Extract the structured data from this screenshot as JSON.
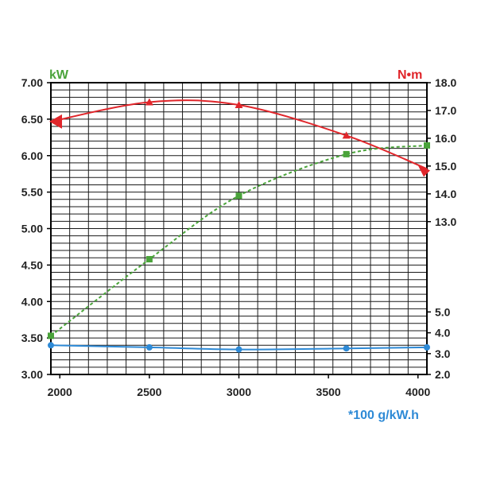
{
  "chart_data": {
    "type": "line",
    "title": "",
    "x": [
      1950,
      2500,
      3000,
      3600,
      4050
    ],
    "xlim": [
      1950,
      4050
    ],
    "x_ticks": [
      2000,
      2500,
      3000,
      3500,
      4000
    ],
    "x_tick_labels": [
      "2000",
      "2500",
      "3000",
      "3500",
      "4000"
    ],
    "left_axis": {
      "unit": "kW",
      "ylim": [
        3.0,
        7.0
      ],
      "ticks": [
        3.0,
        3.5,
        4.0,
        4.5,
        5.0,
        5.5,
        6.0,
        6.5,
        7.0
      ],
      "tick_labels": [
        "3.00",
        "3.50",
        "4.00",
        "4.50",
        "5.00",
        "5.50",
        "6.00",
        "6.50",
        "7.00"
      ]
    },
    "right_axis_torque": {
      "unit": "N•m",
      "ylim": [
        7.5,
        18.0
      ],
      "ticks": [
        13.0,
        14.0,
        15.0,
        16.0,
        17.0,
        18.0
      ],
      "tick_labels": [
        "13.0",
        "14.0",
        "15.0",
        "16.0",
        "17.0",
        "18.0"
      ]
    },
    "right_axis_fuel": {
      "unit": "*100 g/kW.h",
      "ylim": [
        2.0,
        16.0
      ],
      "ticks": [
        2.0,
        3.0,
        4.0,
        5.0
      ],
      "tick_labels": [
        "2.0",
        "3.0",
        "4.0",
        "5.0"
      ]
    },
    "grid": true,
    "series": [
      {
        "axis": "left",
        "color": "#4aa33a",
        "marker": "square",
        "values": [
          3.53,
          4.58,
          5.45,
          6.02,
          6.14
        ]
      },
      {
        "axis": "right_torque",
        "color": "#e0262b",
        "marker": "triangle",
        "values": [
          16.6,
          17.3,
          17.2,
          16.1,
          14.9
        ]
      },
      {
        "axis": "right_fuel",
        "color": "#2e8ad6",
        "marker": "circle",
        "values": [
          3.4,
          3.3,
          3.2,
          3.25,
          3.3
        ]
      }
    ]
  }
}
